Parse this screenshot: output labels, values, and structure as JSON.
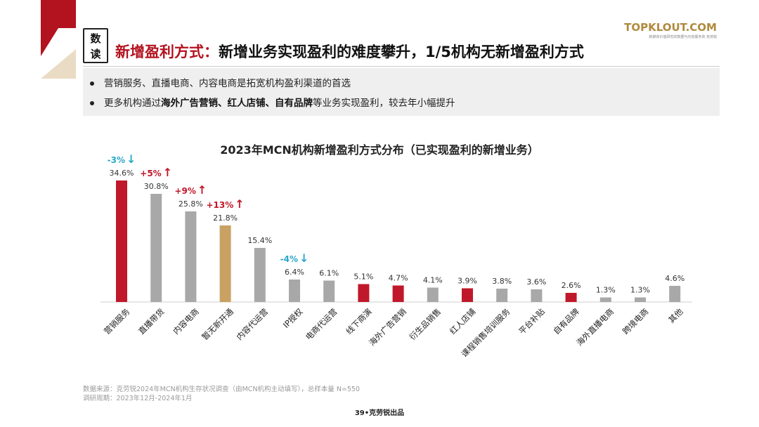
{
  "header": {
    "badge_line1": "数",
    "badge_line2": "读",
    "title_highlight": "新增盈利方式：",
    "title_rest": "新增业务实现盈利的难度攀升，1/5机构无新增盈利方式",
    "logo_name": "TOPKLOUT.COM",
    "logo_tag": "新媒体价值研究的数据与内容服务商 克劳锐"
  },
  "summary": {
    "line1": "营销服务、直播电商、内容电商是拓宽机构盈利渠道的首选",
    "line2_pre": "更多机构通过",
    "line2_bold": "海外广告营销、红人店铺、自有品牌",
    "line2_post": "等业务实现盈利，较去年小幅提升"
  },
  "chart_data": {
    "type": "bar",
    "title": "2023年MCN机构新增盈利方式分布（已实现盈利的新增业务）",
    "categories": [
      "营销服务",
      "直播带货",
      "内容电商",
      "暂无新开通",
      "内容代运营",
      "IP授权",
      "电商代运营",
      "线下商演",
      "海外广告营销",
      "衍生品销售",
      "红人店铺",
      "课程销售培训服务",
      "平台补贴",
      "自有品牌",
      "海外直播电商",
      "跨境电商",
      "其他"
    ],
    "values": [
      34.6,
      30.8,
      25.8,
      21.8,
      15.4,
      6.4,
      6.1,
      5.1,
      4.7,
      4.1,
      3.9,
      3.8,
      3.6,
      2.6,
      1.3,
      1.3,
      4.6
    ],
    "value_labels": [
      "34.6%",
      "30.8%",
      "25.8%",
      "21.8%",
      "15.4%",
      "6.4%",
      "6.1%",
      "5.1%",
      "4.7%",
      "4.1%",
      "3.9%",
      "3.8%",
      "3.6%",
      "2.6%",
      "1.3%",
      "1.3%",
      "4.6%"
    ],
    "bar_colors": [
      "#c0182a",
      "#a8a8a8",
      "#a8a8a8",
      "#c9a162",
      "#a8a8a8",
      "#a8a8a8",
      "#a8a8a8",
      "#c0182a",
      "#c0182a",
      "#a8a8a8",
      "#c0182a",
      "#a8a8a8",
      "#a8a8a8",
      "#c0182a",
      "#a8a8a8",
      "#a8a8a8",
      "#a8a8a8"
    ],
    "ylim": [
      0,
      36
    ],
    "grid": false,
    "annotations": [
      {
        "index": 0,
        "text": "-3%",
        "arrow": "↓",
        "color": "#2aa7c9"
      },
      {
        "index": 1,
        "text": "+5%",
        "arrow": "↑",
        "color": "#c0182a"
      },
      {
        "index": 2,
        "text": "+9%",
        "arrow": "↑",
        "color": "#c0182a"
      },
      {
        "index": 3,
        "text": "+13%",
        "arrow": "↑",
        "color": "#c0182a"
      },
      {
        "index": 5,
        "text": "-4%",
        "arrow": "↓",
        "color": "#2aa7c9"
      }
    ]
  },
  "footer": {
    "source": "数据来源：克劳锐2024年MCN机构生存状况调查（由MCN机构主动填写），总样本量 N=550",
    "period": "调研周期：2023年12月-2024年1月",
    "page": "39•克劳锐出品"
  }
}
